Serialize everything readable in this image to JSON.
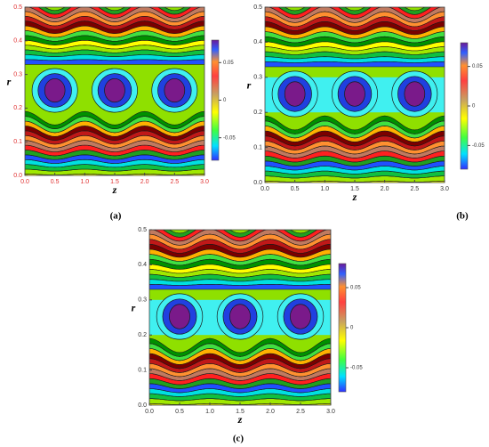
{
  "chart_data": [
    {
      "type": "contour",
      "caption": "(a)",
      "xlabel": "z",
      "ylabel": "r",
      "xlim": [
        0,
        3
      ],
      "xticks": [
        {
          "value": 0,
          "label": "0.0"
        },
        {
          "value": 0.5,
          "label": "0.5"
        },
        {
          "value": 1,
          "label": "1.0"
        },
        {
          "value": 1.5,
          "label": "1.5"
        },
        {
          "value": 2,
          "label": "2.0"
        },
        {
          "value": 2.5,
          "label": "2.5"
        },
        {
          "value": 3,
          "label": "3.0"
        }
      ],
      "ylim": [
        0,
        0.5
      ],
      "yticks": [
        {
          "value": 0,
          "label": "0.0"
        },
        0.1,
        0.2,
        0.3,
        0.4,
        0.5
      ],
      "tick_color": "#e03030",
      "colorbar_lim": [
        -0.08,
        0.08
      ],
      "colorbar_ticks": [
        0.05,
        0,
        -0.05
      ],
      "core_region": false
    },
    {
      "type": "contour",
      "caption": "(b)",
      "xlabel": "z",
      "ylabel": "r",
      "xlim": [
        0,
        3
      ],
      "xticks": [
        {
          "value": 0,
          "label": "0.0"
        },
        {
          "value": 0.5,
          "label": "0.5"
        },
        {
          "value": 1,
          "label": "1.0"
        },
        {
          "value": 1.5,
          "label": "1.5"
        },
        {
          "value": 2,
          "label": "2.0"
        },
        {
          "value": 2.5,
          "label": "2.5"
        },
        {
          "value": 3,
          "label": "3.0"
        }
      ],
      "ylim": [
        0,
        0.5
      ],
      "yticks": [
        {
          "value": 0,
          "label": "0.0"
        },
        0.1,
        0.2,
        0.3,
        0.4,
        0.5
      ],
      "tick_color": "#333333",
      "colorbar_lim": [
        -0.08,
        0.08
      ],
      "colorbar_ticks": [
        0.05,
        0,
        -0.05
      ],
      "core_region": true
    },
    {
      "type": "contour",
      "caption": "(c)",
      "xlabel": "z",
      "ylabel": "r",
      "xlim": [
        0,
        3
      ],
      "xticks": [
        {
          "value": 0,
          "label": "0.0"
        },
        {
          "value": 0.5,
          "label": "0.5"
        },
        {
          "value": 1,
          "label": "1.0"
        },
        {
          "value": 1.5,
          "label": "1.5"
        },
        {
          "value": 2,
          "label": "2.0"
        },
        {
          "value": 2.5,
          "label": "2.5"
        },
        {
          "value": 3,
          "label": "3.0"
        }
      ],
      "ylim": [
        0,
        0.5
      ],
      "yticks": [
        {
          "value": 0,
          "label": "0.0"
        },
        0.1,
        0.2,
        0.3,
        0.4,
        0.5
      ],
      "tick_color": "#333333",
      "colorbar_lim": [
        -0.08,
        0.08
      ],
      "colorbar_ticks": [
        0.05,
        0,
        -0.05
      ],
      "core_region": true
    }
  ]
}
